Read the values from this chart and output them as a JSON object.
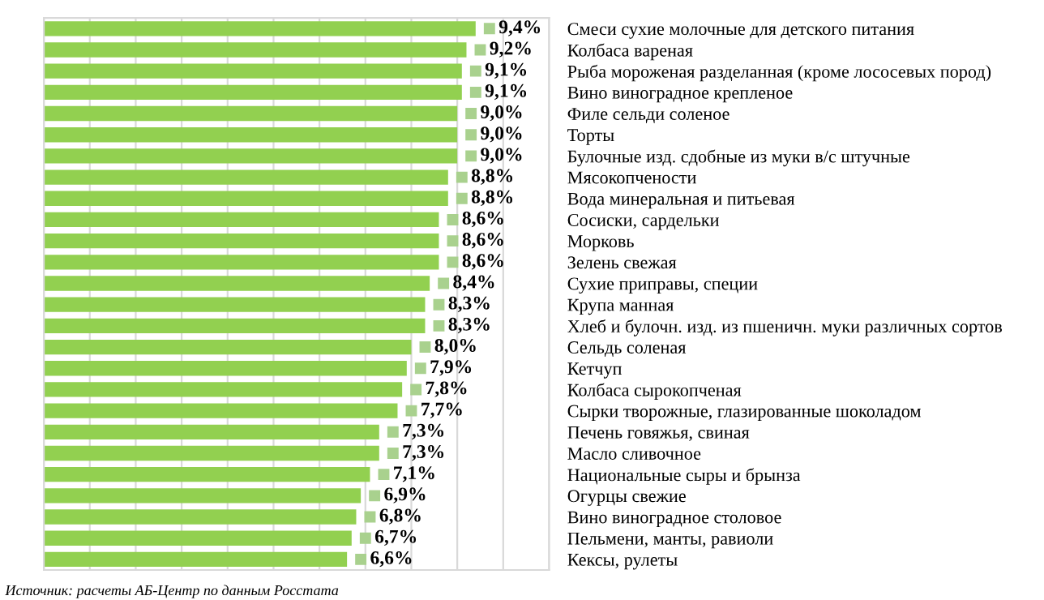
{
  "chart_data": {
    "type": "bar",
    "orientation": "horizontal",
    "categories": [
      "Смеси сухие молочные для детского питания",
      "Колбаса вареная",
      "Рыба мороженая разделанная (кроме лососевых пород)",
      "Вино виноградное крепленое",
      "Филе сельди соленое",
      "Торты",
      "Булочные изд. сдобные из муки в/с штучные",
      "Мясокопчености",
      "Вода минеральная и питьевая",
      "Сосиски, сардельки",
      "Морковь",
      "Зелень свежая",
      "Сухие приправы, специи",
      "Крупа манная",
      "Хлеб и булочн. изд. из пшеничн. муки различных сортов",
      "Сельдь соленая",
      "Кетчуп",
      "Колбаса сырокопченая",
      "Сырки творожные, глазированные шоколадом",
      "Печень говяжья, свиная",
      "Масло сливочное",
      "Национальные сыры и брынза",
      "Огурцы свежие",
      "Вино виноградное столовое",
      "Пельмени, манты, равиоли",
      "Кексы, рулеты"
    ],
    "values": [
      9.4,
      9.2,
      9.1,
      9.1,
      9.0,
      9.0,
      9.0,
      8.8,
      8.8,
      8.6,
      8.6,
      8.6,
      8.4,
      8.3,
      8.3,
      8.0,
      7.9,
      7.8,
      7.7,
      7.3,
      7.3,
      7.1,
      6.9,
      6.8,
      6.7,
      6.6
    ],
    "value_labels": [
      "9,4%",
      "9,2%",
      "9,1%",
      "9,1%",
      "9,0%",
      "9,0%",
      "9,0%",
      "8,8%",
      "8,8%",
      "8,6%",
      "8,6%",
      "8,6%",
      "8,4%",
      "8,3%",
      "8,3%",
      "8,0%",
      "7,9%",
      "7,8%",
      "7,7%",
      "7,3%",
      "7,3%",
      "7,1%",
      "6,9%",
      "6,8%",
      "6,7%",
      "6,6%"
    ],
    "color": "#92d050",
    "xlim": [
      0,
      11
    ],
    "xticks": [
      {
        "value": 0,
        "label": null
      },
      {
        "value": 1,
        "label": null
      },
      {
        "value": 2,
        "label": null
      },
      {
        "value": 3,
        "label": null
      },
      {
        "value": 4,
        "label": null
      },
      {
        "value": 5,
        "label": null
      },
      {
        "value": 6,
        "label": null
      },
      {
        "value": 7,
        "label": null
      },
      {
        "value": 8,
        "label": null
      },
      {
        "value": 9,
        "label": null
      },
      {
        "value": 10,
        "label": null
      },
      {
        "value": 11,
        "label": null
      }
    ],
    "tick_labels": "y",
    "grid": "x",
    "annotations": [
      "Источник: расчеты АБ-Центр по данным Росстата"
    ]
  }
}
